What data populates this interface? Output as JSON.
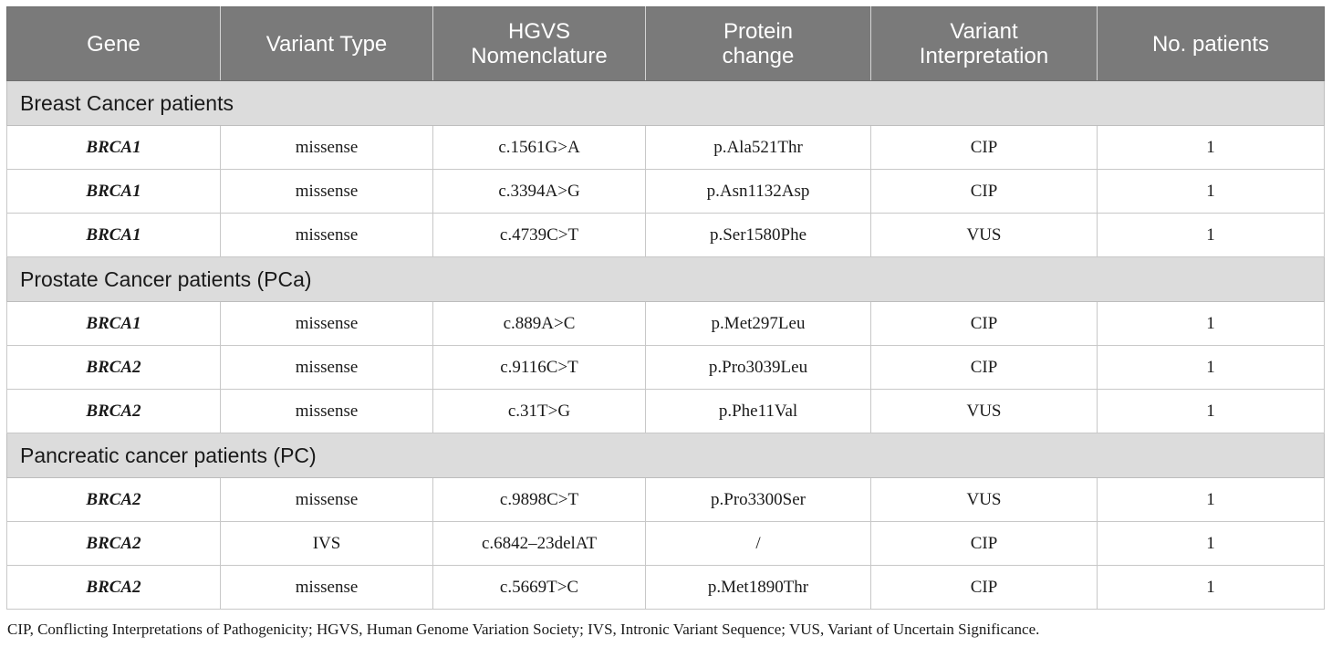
{
  "table": {
    "headers": [
      "Gene",
      "Variant Type",
      "HGVS\nNomenclature",
      "Protein\nchange",
      "Variant\nInterpretation",
      "No. patients"
    ],
    "sections": [
      {
        "title": "Breast Cancer patients",
        "rows": [
          {
            "gene": "BRCA1",
            "variant_type": "missense",
            "hgvs": "c.1561G>A",
            "protein_change": "p.Ala521Thr",
            "interpretation": "CIP",
            "patients": "1"
          },
          {
            "gene": "BRCA1",
            "variant_type": "missense",
            "hgvs": "c.3394A>G",
            "protein_change": "p.Asn1132Asp",
            "interpretation": "CIP",
            "patients": "1"
          },
          {
            "gene": "BRCA1",
            "variant_type": "missense",
            "hgvs": "c.4739C>T",
            "protein_change": "p.Ser1580Phe",
            "interpretation": "VUS",
            "patients": "1"
          }
        ]
      },
      {
        "title": "Prostate Cancer patients (PCa)",
        "rows": [
          {
            "gene": "BRCA1",
            "variant_type": "missense",
            "hgvs": "c.889A>C",
            "protein_change": "p.Met297Leu",
            "interpretation": "CIP",
            "patients": "1"
          },
          {
            "gene": "BRCA2",
            "variant_type": "missense",
            "hgvs": "c.9116C>T",
            "protein_change": "p.Pro3039Leu",
            "interpretation": "CIP",
            "patients": "1"
          },
          {
            "gene": "BRCA2",
            "variant_type": "missense",
            "hgvs": "c.31T>G",
            "protein_change": "p.Phe11Val",
            "interpretation": "VUS",
            "patients": "1"
          }
        ]
      },
      {
        "title": "Pancreatic cancer patients (PC)",
        "rows": [
          {
            "gene": "BRCA2",
            "variant_type": "missense",
            "hgvs": "c.9898C>T",
            "protein_change": "p.Pro3300Ser",
            "interpretation": "VUS",
            "patients": "1"
          },
          {
            "gene": "BRCA2",
            "variant_type": "IVS",
            "hgvs": "c.6842–23delAT",
            "protein_change": "/",
            "interpretation": "CIP",
            "patients": "1"
          },
          {
            "gene": "BRCA2",
            "variant_type": "missense",
            "hgvs": "c.5669T>C",
            "protein_change": "p.Met1890Thr",
            "interpretation": "CIP",
            "patients": "1"
          }
        ]
      }
    ]
  },
  "footnote": "CIP, Conflicting Interpretations of Pathogenicity; HGVS, Human Genome Variation Society; IVS, Intronic Variant Sequence; VUS, Variant of Uncertain Significance.",
  "colors": {
    "header_bg": "#7a7a7a",
    "header_text": "#ffffff",
    "section_bg": "#dcdcdc",
    "border": "#c8c8c8"
  }
}
